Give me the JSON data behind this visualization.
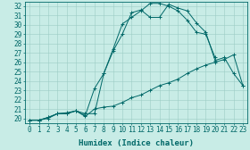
{
  "xlabel": "Humidex (Indice chaleur)",
  "xlim": [
    -0.5,
    23.5
  ],
  "ylim": [
    19.5,
    32.5
  ],
  "background_color": "#c8ece6",
  "grid_color": "#9cccc4",
  "line_color": "#006868",
  "line1_x": [
    0,
    1,
    2,
    3,
    4,
    5,
    6,
    7,
    8,
    9,
    10,
    11,
    12,
    13,
    14,
    15,
    16,
    17,
    18,
    19,
    20,
    21,
    22,
    23
  ],
  "line1_y": [
    19.8,
    19.8,
    20.1,
    20.5,
    20.6,
    20.8,
    20.5,
    20.5,
    24.8,
    27.2,
    29.0,
    31.3,
    31.6,
    30.8,
    30.8,
    32.2,
    31.8,
    31.5,
    30.2,
    29.2,
    26.2,
    26.5,
    24.8,
    23.5
  ],
  "line2_x": [
    0,
    1,
    2,
    3,
    4,
    5,
    6,
    7,
    8,
    9,
    10,
    11,
    12,
    13,
    14,
    15,
    16,
    17,
    18,
    19,
    20,
    21,
    22,
    23
  ],
  "line2_y": [
    19.8,
    19.8,
    20.0,
    20.5,
    20.5,
    20.8,
    20.2,
    21.0,
    21.2,
    21.3,
    21.7,
    22.2,
    22.5,
    23.0,
    23.5,
    23.8,
    24.2,
    24.8,
    25.3,
    25.7,
    26.0,
    26.3,
    26.8,
    23.5
  ],
  "line3_x": [
    0,
    1,
    2,
    3,
    4,
    5,
    6,
    7,
    8,
    9,
    10,
    11,
    12,
    13,
    14,
    15,
    16,
    17,
    18,
    19,
    20
  ],
  "line3_y": [
    19.8,
    19.8,
    20.1,
    20.5,
    20.5,
    20.8,
    20.3,
    23.2,
    24.8,
    27.4,
    30.1,
    30.8,
    31.5,
    32.3,
    32.3,
    32.0,
    31.5,
    30.5,
    29.2,
    29.0,
    26.5
  ],
  "xtick_labels": [
    "0",
    "1",
    "2",
    "3",
    "4",
    "5",
    "6",
    "7",
    "8",
    "9",
    "10",
    "11",
    "12",
    "13",
    "14",
    "15",
    "16",
    "17",
    "18",
    "19",
    "20",
    "21",
    "22",
    "23"
  ],
  "ytick_vals": [
    20,
    21,
    22,
    23,
    24,
    25,
    26,
    27,
    28,
    29,
    30,
    31,
    32
  ],
  "fontsize_ticks": 5.5,
  "fontsize_label": 6.5
}
